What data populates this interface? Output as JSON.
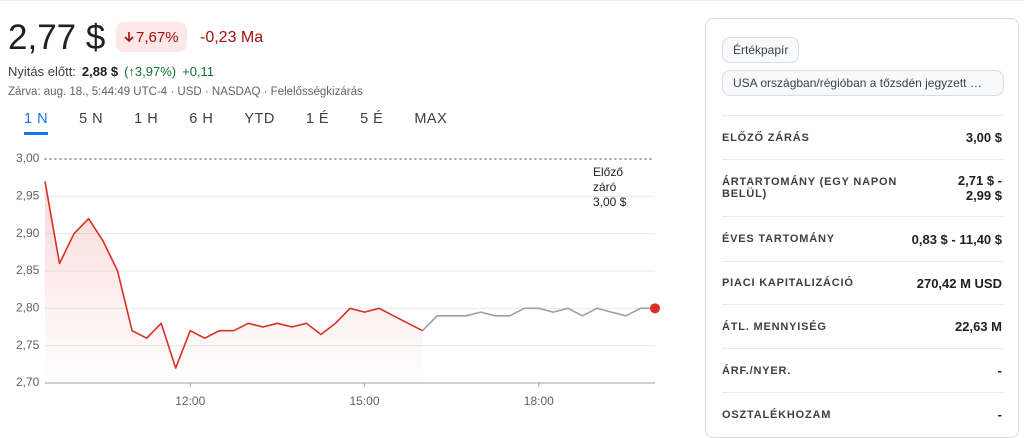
{
  "header": {
    "price": "2,77 $",
    "change_pct": "7,67%",
    "change_abs": "-0,23 Ma",
    "premarket_label": "Nyitás előtt:",
    "premarket_price": "2,88 $",
    "premarket_change_pct": "(↑3,97%)",
    "premarket_change_abs": "+0,11",
    "closed_info": "Zárva: aug. 18., 5:44:49 UTC-4 · USD · NASDAQ · Felelősségkizárás"
  },
  "tabs": {
    "items": [
      "1 N",
      "5 N",
      "1 H",
      "6 H",
      "YTD",
      "1 É",
      "5 É",
      "MAX"
    ],
    "active": 0
  },
  "chart_data": {
    "type": "line",
    "x": [
      9.5,
      9.75,
      10,
      10.25,
      10.5,
      10.75,
      11,
      11.25,
      11.5,
      11.75,
      12,
      12.25,
      12.5,
      12.75,
      13,
      13.25,
      13.5,
      13.75,
      14,
      14.25,
      14.5,
      14.75,
      15,
      15.25,
      15.5,
      15.75,
      16,
      16.25,
      16.5,
      16.75,
      17,
      17.25,
      17.5,
      17.75,
      18,
      18.25,
      18.5,
      18.75,
      19,
      19.25,
      19.5,
      19.75,
      20
    ],
    "xlim": [
      9.5,
      20
    ],
    "xticks": [
      {
        "value": 12,
        "label": "12:00"
      },
      {
        "value": 15,
        "label": "15:00"
      },
      {
        "value": 18,
        "label": "18:00"
      }
    ],
    "ylim": [
      2.7,
      3.0
    ],
    "yticks": [
      {
        "value": 3.0,
        "label": "3,00"
      },
      {
        "value": 2.95,
        "label": "2,95"
      },
      {
        "value": 2.9,
        "label": "2,90"
      },
      {
        "value": 2.85,
        "label": "2,85"
      },
      {
        "value": 2.8,
        "label": "2,80"
      },
      {
        "value": 2.75,
        "label": "2,75"
      },
      {
        "value": 2.7,
        "label": "2,70"
      }
    ],
    "grid": true,
    "series": [
      {
        "color": "#d93025",
        "values": [
          2.97,
          2.86,
          2.9,
          2.92,
          2.89,
          2.85,
          2.77,
          2.76,
          2.78,
          2.72,
          2.77,
          2.76,
          2.77,
          2.77,
          2.78,
          2.775,
          2.78,
          2.775,
          2.78,
          2.765,
          2.78,
          2.8,
          2.795,
          2.8,
          2.79,
          2.78,
          2.77,
          null,
          null,
          null,
          null,
          null,
          null,
          null,
          null,
          null,
          null,
          null,
          null,
          null,
          null,
          null,
          null
        ]
      },
      {
        "color": "#9aa0a6",
        "values": [
          null,
          null,
          null,
          null,
          null,
          null,
          null,
          null,
          null,
          null,
          null,
          null,
          null,
          null,
          null,
          null,
          null,
          null,
          null,
          null,
          null,
          null,
          null,
          null,
          null,
          null,
          2.77,
          2.79,
          2.79,
          2.79,
          2.795,
          2.79,
          2.79,
          2.8,
          2.8,
          2.795,
          2.8,
          2.79,
          2.8,
          2.795,
          2.79,
          2.8,
          2.8
        ]
      }
    ],
    "reference": {
      "value": 3.0,
      "label_lines": [
        "Előző",
        "záró",
        "3,00 $"
      ]
    }
  },
  "sidebar": {
    "chips": [
      "Értékpapír",
      "USA országban/régióban a tőzsdén jegyzett …"
    ],
    "stats": [
      [
        "ELŐZŐ ZÁRÁS",
        "3,00 $"
      ],
      [
        "ÁRTARTOMÁNY (EGY NAPON BELÜL)",
        "2,71 $ - 2,99 $"
      ],
      [
        "ÉVES TARTOMÁNY",
        "0,83 $ - 11,40 $"
      ],
      [
        "PIACI KAPITALIZÁCIÓ",
        "270,42 M USD"
      ],
      [
        "ÁTL. MENNYISÉG",
        "22,63 M"
      ],
      [
        "ÁRF./NYER.",
        "-"
      ],
      [
        "OSZTALÉKHOZAM",
        "-"
      ]
    ]
  }
}
